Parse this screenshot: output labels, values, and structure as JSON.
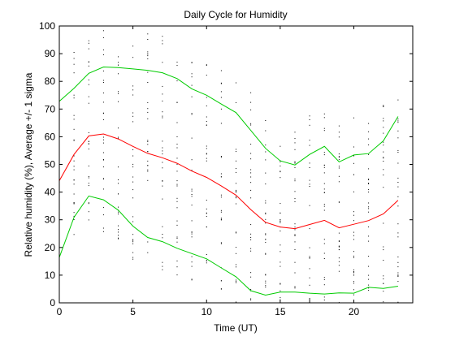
{
  "chart_data": {
    "type": "line",
    "title": "Daily Cycle for Humidity",
    "xlabel": "Time (UT)",
    "ylabel": "Relative humidity (%), Average +/- 1 sigma",
    "xlim": [
      0,
      24
    ],
    "ylim": [
      0,
      100
    ],
    "xticks": [
      0,
      5,
      10,
      15,
      20
    ],
    "yticks": [
      0,
      10,
      20,
      30,
      40,
      50,
      60,
      70,
      80,
      90,
      100
    ],
    "grid": false,
    "x": [
      0,
      1,
      2,
      3,
      4,
      5,
      6,
      7,
      8,
      9,
      10,
      11,
      12,
      13,
      14,
      15,
      16,
      17,
      18,
      19,
      20,
      21,
      22,
      23
    ],
    "series": [
      {
        "role": "average + 1 sigma",
        "color": "#00cc00",
        "values": [
          72.8,
          77.5,
          82.9,
          85.2,
          85.0,
          84.5,
          84.0,
          83.1,
          81.0,
          77.3,
          75.0,
          71.8,
          68.7,
          62.3,
          55.8,
          51.3,
          49.8,
          53.6,
          56.5,
          50.9,
          53.4,
          53.9,
          58.5,
          67.3
        ]
      },
      {
        "role": "average",
        "color": "#ff0000",
        "values": [
          44.1,
          53.6,
          60.3,
          61.0,
          59.2,
          56.5,
          54.0,
          52.4,
          50.4,
          47.6,
          45.3,
          42.2,
          38.9,
          33.7,
          29.1,
          27.4,
          26.8,
          28.3,
          29.8,
          27.1,
          28.4,
          29.7,
          32.1,
          37.0
        ]
      },
      {
        "role": "average - 1 sigma",
        "color": "#00cc00",
        "values": [
          16.4,
          30.9,
          38.6,
          37.2,
          33.5,
          27.7,
          23.6,
          22.1,
          19.7,
          17.8,
          15.9,
          12.6,
          9.4,
          4.4,
          2.8,
          3.9,
          3.9,
          3.5,
          3.2,
          3.6,
          3.5,
          5.6,
          5.2,
          6.0
        ]
      }
    ],
    "scatter_color": "#000000"
  }
}
